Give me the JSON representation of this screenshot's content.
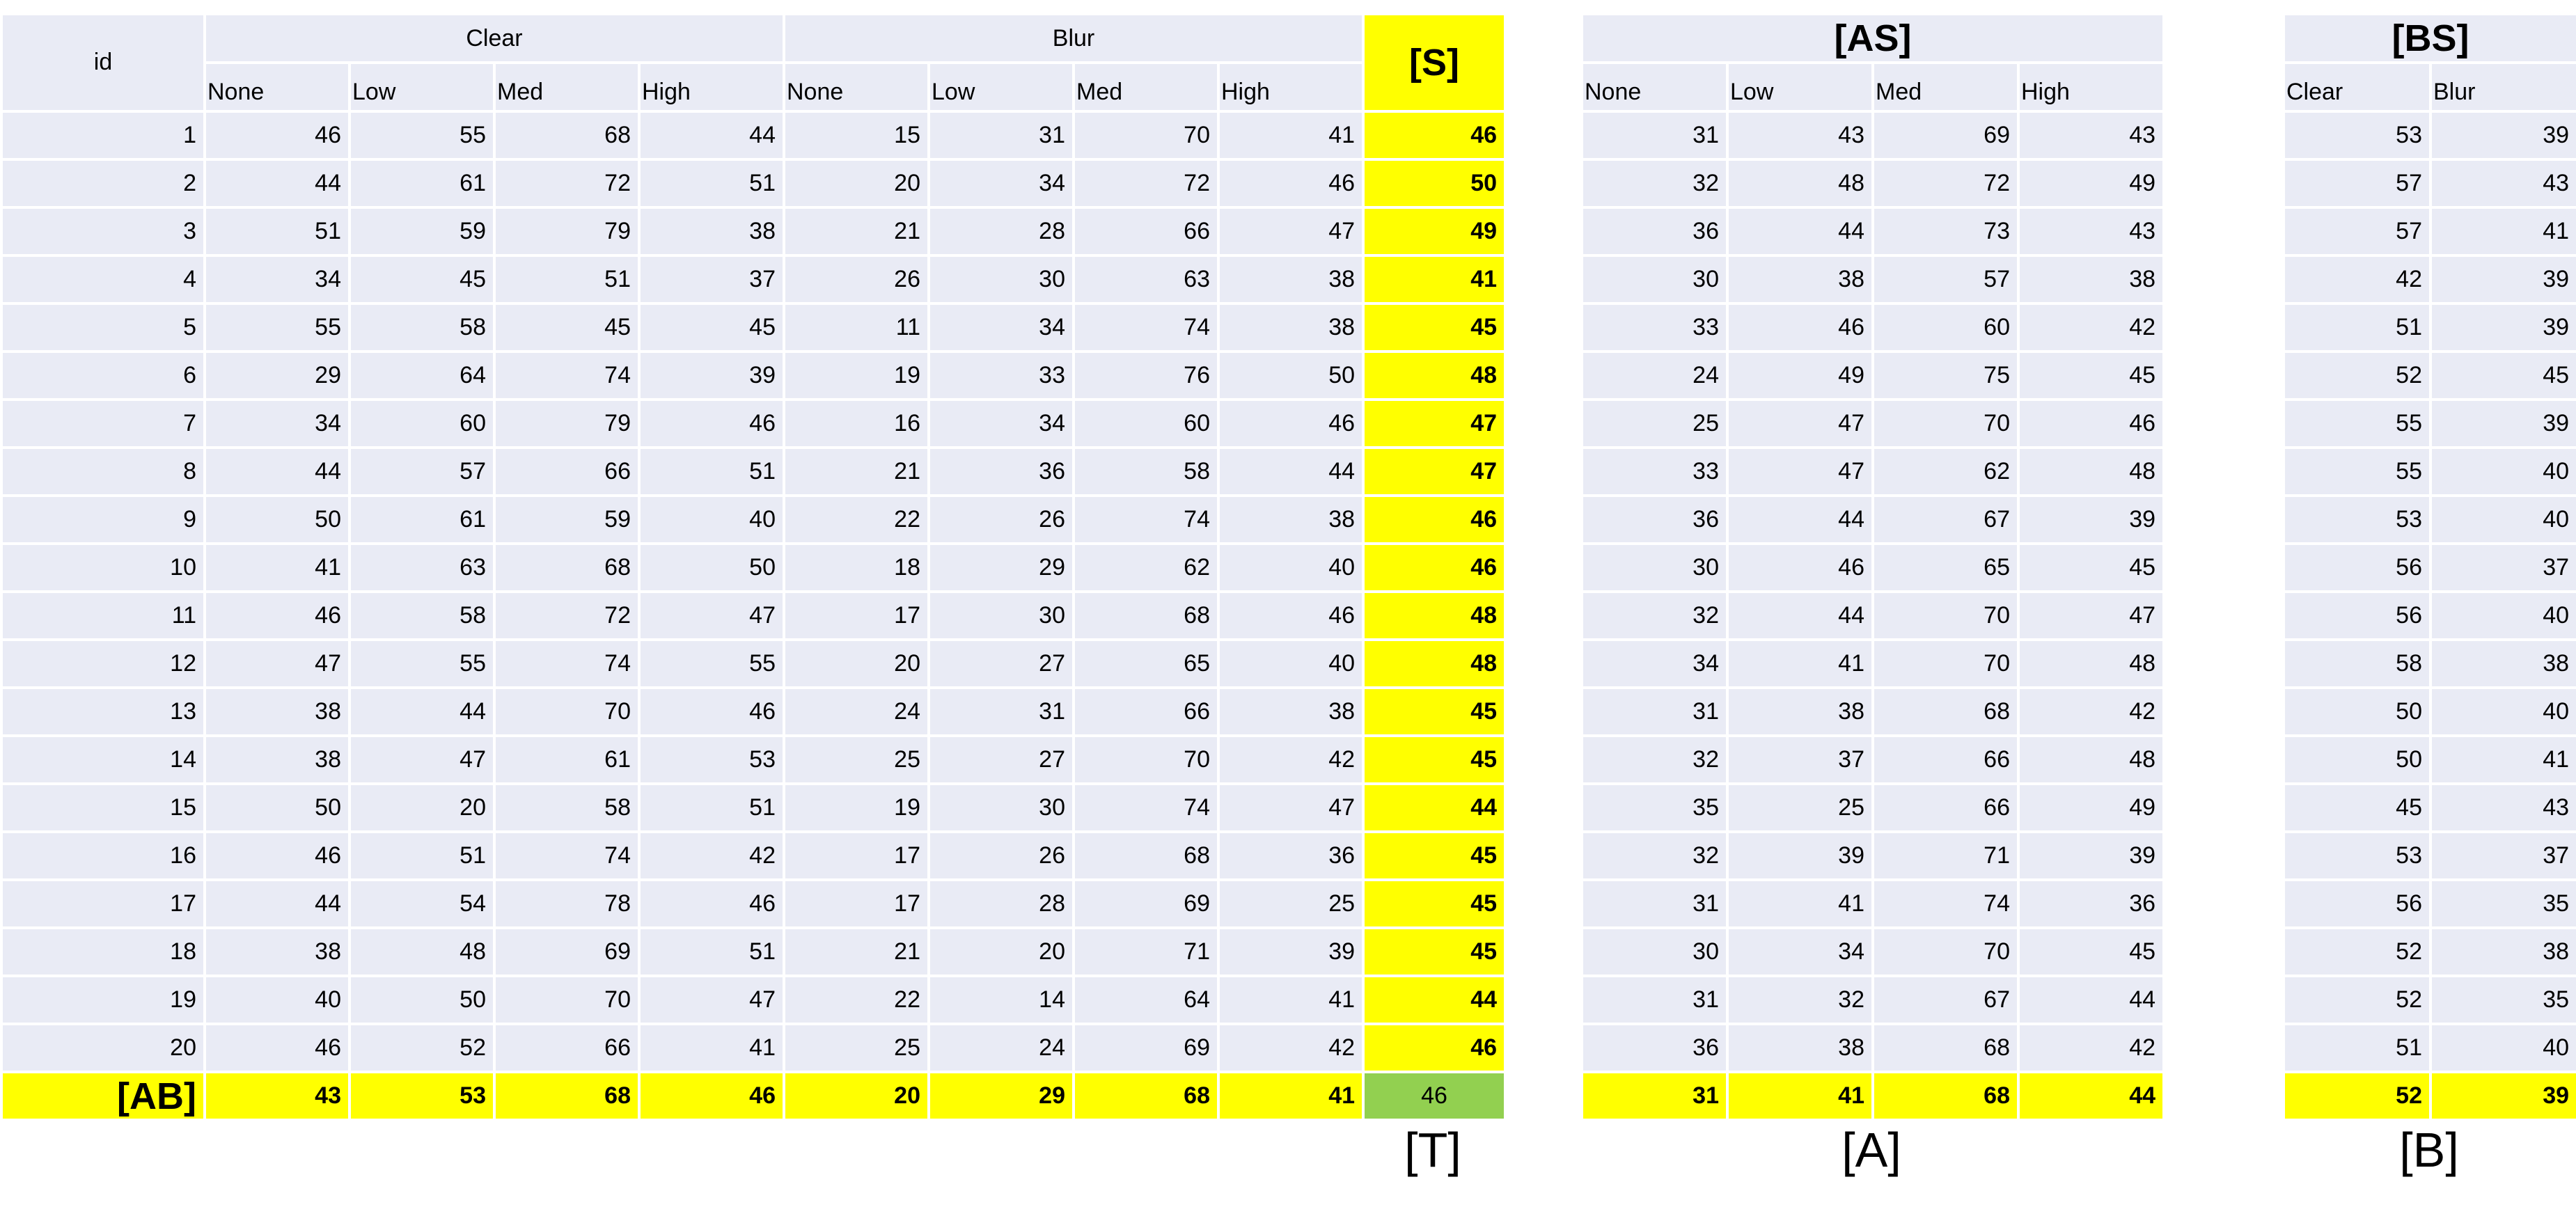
{
  "table_t": {
    "id_header": "id",
    "group_clear": "Clear",
    "group_blur": "Blur",
    "sub_headers": [
      "None",
      "Low",
      "Med",
      "High",
      "None",
      "Low",
      "Med",
      "High"
    ],
    "s_header": "[S]",
    "rows": [
      [
        "1",
        "46",
        "55",
        "68",
        "44",
        "15",
        "31",
        "70",
        "41",
        "46"
      ],
      [
        "2",
        "44",
        "61",
        "72",
        "51",
        "20",
        "34",
        "72",
        "46",
        "50"
      ],
      [
        "3",
        "51",
        "59",
        "79",
        "38",
        "21",
        "28",
        "66",
        "47",
        "49"
      ],
      [
        "4",
        "34",
        "45",
        "51",
        "37",
        "26",
        "30",
        "63",
        "38",
        "41"
      ],
      [
        "5",
        "55",
        "58",
        "45",
        "45",
        "11",
        "34",
        "74",
        "38",
        "45"
      ],
      [
        "6",
        "29",
        "64",
        "74",
        "39",
        "19",
        "33",
        "76",
        "50",
        "48"
      ],
      [
        "7",
        "34",
        "60",
        "79",
        "46",
        "16",
        "34",
        "60",
        "46",
        "47"
      ],
      [
        "8",
        "44",
        "57",
        "66",
        "51",
        "21",
        "36",
        "58",
        "44",
        "47"
      ],
      [
        "9",
        "50",
        "61",
        "59",
        "40",
        "22",
        "26",
        "74",
        "38",
        "46"
      ],
      [
        "10",
        "41",
        "63",
        "68",
        "50",
        "18",
        "29",
        "62",
        "40",
        "46"
      ],
      [
        "11",
        "46",
        "58",
        "72",
        "47",
        "17",
        "30",
        "68",
        "46",
        "48"
      ],
      [
        "12",
        "47",
        "55",
        "74",
        "55",
        "20",
        "27",
        "65",
        "40",
        "48"
      ],
      [
        "13",
        "38",
        "44",
        "70",
        "46",
        "24",
        "31",
        "66",
        "38",
        "45"
      ],
      [
        "14",
        "38",
        "47",
        "61",
        "53",
        "25",
        "27",
        "70",
        "42",
        "45"
      ],
      [
        "15",
        "50",
        "20",
        "58",
        "51",
        "19",
        "30",
        "74",
        "47",
        "44"
      ],
      [
        "16",
        "46",
        "51",
        "74",
        "42",
        "17",
        "26",
        "68",
        "36",
        "45"
      ],
      [
        "17",
        "44",
        "54",
        "78",
        "46",
        "17",
        "28",
        "69",
        "25",
        "45"
      ],
      [
        "18",
        "38",
        "48",
        "69",
        "51",
        "21",
        "20",
        "71",
        "39",
        "45"
      ],
      [
        "19",
        "40",
        "50",
        "70",
        "47",
        "22",
        "14",
        "64",
        "41",
        "44"
      ],
      [
        "20",
        "46",
        "52",
        "66",
        "41",
        "25",
        "24",
        "69",
        "42",
        "46"
      ]
    ],
    "ab_label": "[AB]",
    "ab_values": [
      "43",
      "53",
      "68",
      "46",
      "20",
      "29",
      "68",
      "41"
    ],
    "total": "46",
    "caption": "[T]"
  },
  "table_a": {
    "title": "[AS]",
    "sub_headers": [
      "None",
      "Low",
      "Med",
      "High"
    ],
    "rows": [
      [
        "31",
        "43",
        "69",
        "43"
      ],
      [
        "32",
        "48",
        "72",
        "49"
      ],
      [
        "36",
        "44",
        "73",
        "43"
      ],
      [
        "30",
        "38",
        "57",
        "38"
      ],
      [
        "33",
        "46",
        "60",
        "42"
      ],
      [
        "24",
        "49",
        "75",
        "45"
      ],
      [
        "25",
        "47",
        "70",
        "46"
      ],
      [
        "33",
        "47",
        "62",
        "48"
      ],
      [
        "36",
        "44",
        "67",
        "39"
      ],
      [
        "30",
        "46",
        "65",
        "45"
      ],
      [
        "32",
        "44",
        "70",
        "47"
      ],
      [
        "34",
        "41",
        "70",
        "48"
      ],
      [
        "31",
        "38",
        "68",
        "42"
      ],
      [
        "32",
        "37",
        "66",
        "48"
      ],
      [
        "35",
        "25",
        "66",
        "49"
      ],
      [
        "32",
        "39",
        "71",
        "39"
      ],
      [
        "31",
        "41",
        "74",
        "36"
      ],
      [
        "30",
        "34",
        "70",
        "45"
      ],
      [
        "31",
        "32",
        "67",
        "44"
      ],
      [
        "36",
        "38",
        "68",
        "42"
      ]
    ],
    "totals": [
      "31",
      "41",
      "68",
      "44"
    ],
    "caption": "[A]"
  },
  "table_b": {
    "title": "[BS]",
    "sub_headers": [
      "Clear",
      "Blur"
    ],
    "rows": [
      [
        "53",
        "39"
      ],
      [
        "57",
        "43"
      ],
      [
        "57",
        "41"
      ],
      [
        "42",
        "39"
      ],
      [
        "51",
        "39"
      ],
      [
        "52",
        "45"
      ],
      [
        "55",
        "39"
      ],
      [
        "55",
        "40"
      ],
      [
        "53",
        "40"
      ],
      [
        "56",
        "37"
      ],
      [
        "56",
        "40"
      ],
      [
        "58",
        "38"
      ],
      [
        "50",
        "40"
      ],
      [
        "50",
        "41"
      ],
      [
        "45",
        "43"
      ],
      [
        "53",
        "37"
      ],
      [
        "56",
        "35"
      ],
      [
        "52",
        "38"
      ],
      [
        "52",
        "35"
      ],
      [
        "51",
        "40"
      ]
    ],
    "totals": [
      "52",
      "39"
    ],
    "caption": "[B]"
  }
}
